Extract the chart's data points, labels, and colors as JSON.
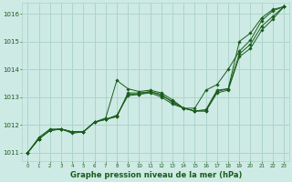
{
  "title": "Graphe pression niveau de la mer (hPa)",
  "bg_color": "#ceeae5",
  "grid_color": "#aed4cc",
  "line_color": "#1a5c1a",
  "xlim": [
    -0.5,
    23.5
  ],
  "ylim": [
    1010.7,
    1016.4
  ],
  "xticks": [
    0,
    1,
    2,
    3,
    4,
    5,
    6,
    7,
    8,
    9,
    10,
    11,
    12,
    13,
    14,
    15,
    16,
    17,
    18,
    19,
    20,
    21,
    22,
    23
  ],
  "yticks": [
    1011,
    1012,
    1013,
    1014,
    1015,
    1016
  ],
  "series": [
    {
      "x": [
        0,
        1,
        2,
        3,
        4,
        5,
        6,
        7,
        8,
        9,
        10,
        11,
        12,
        13,
        14,
        15,
        16,
        17,
        18,
        19,
        20,
        21,
        22,
        23
      ],
      "y": [
        1011.0,
        1011.55,
        1011.85,
        1011.85,
        1011.75,
        1011.75,
        1012.1,
        1012.25,
        1013.6,
        1013.3,
        1013.2,
        1013.25,
        1013.15,
        1012.9,
        1012.6,
        1012.6,
        1013.25,
        1013.45,
        1014.0,
        1014.65,
        1015.05,
        1015.75,
        1016.1,
        1016.25
      ]
    },
    {
      "x": [
        0,
        1,
        2,
        3,
        4,
        5,
        6,
        7,
        8,
        9,
        10,
        11,
        12,
        13,
        14,
        15,
        16,
        17,
        18,
        19,
        20,
        21,
        22,
        23
      ],
      "y": [
        1011.0,
        1011.5,
        1011.8,
        1011.85,
        1011.7,
        1011.75,
        1012.1,
        1012.2,
        1012.35,
        1013.05,
        1013.1,
        1013.2,
        1013.1,
        1012.8,
        1012.6,
        1012.5,
        1012.55,
        1013.25,
        1013.3,
        1015.0,
        1015.3,
        1015.85,
        1016.15,
        1016.25
      ]
    },
    {
      "x": [
        0,
        1,
        2,
        3,
        4,
        5,
        6,
        7,
        8,
        9,
        10,
        11,
        12,
        13,
        14,
        15,
        16,
        17,
        18,
        19,
        20,
        21,
        22,
        23
      ],
      "y": [
        1011.0,
        1011.5,
        1011.8,
        1011.85,
        1011.75,
        1011.75,
        1012.1,
        1012.2,
        1012.3,
        1013.15,
        1013.15,
        1013.2,
        1013.05,
        1012.85,
        1012.6,
        1012.5,
        1012.5,
        1013.2,
        1013.3,
        1014.55,
        1014.9,
        1015.55,
        1015.9,
        1016.25
      ]
    },
    {
      "x": [
        0,
        1,
        2,
        3,
        4,
        5,
        6,
        7,
        8,
        9,
        10,
        11,
        12,
        13,
        14,
        15,
        16,
        17,
        18,
        19,
        20,
        21,
        22,
        23
      ],
      "y": [
        1011.0,
        1011.5,
        1011.8,
        1011.85,
        1011.75,
        1011.75,
        1012.1,
        1012.2,
        1012.3,
        1013.1,
        1013.1,
        1013.15,
        1013.0,
        1012.75,
        1012.6,
        1012.5,
        1012.5,
        1013.15,
        1013.25,
        1014.45,
        1014.75,
        1015.4,
        1015.8,
        1016.25
      ]
    }
  ]
}
